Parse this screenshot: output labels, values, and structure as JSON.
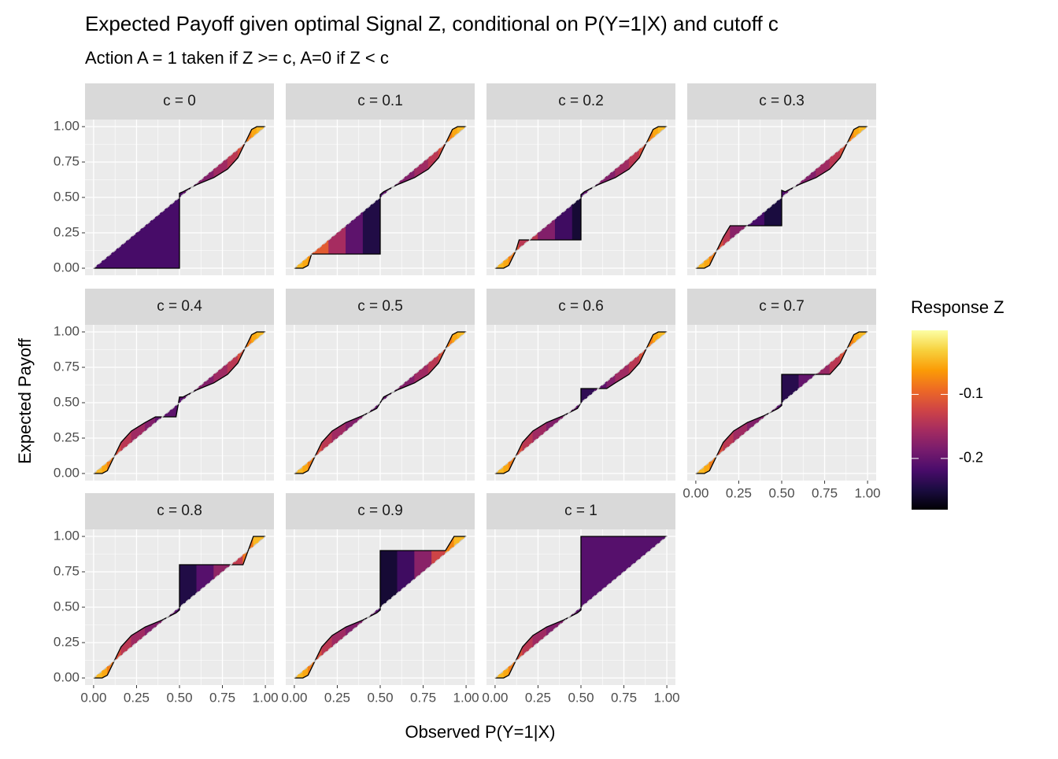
{
  "chart_data": {
    "type": "area",
    "title": "Expected Payoff given optimal Signal Z, conditional on P(Y=1|X) and cutoff c",
    "subtitle": "Action A = 1 taken if Z >= c, A=0 if Z < c",
    "xlabel": "Observed P(Y=1|X)",
    "ylabel": "Expected Payoff",
    "xlim": [
      -0.05,
      1.05
    ],
    "ylim": [
      -0.05,
      1.05
    ],
    "xticks": [
      {
        "value": 0,
        "label": "0.00"
      },
      {
        "value": 0.25,
        "label": "0.25"
      },
      {
        "value": 0.5,
        "label": "0.50"
      },
      {
        "value": 0.75,
        "label": "0.75"
      },
      {
        "value": 1,
        "label": "1.00"
      }
    ],
    "yticks": [
      {
        "value": 0,
        "label": "0.00"
      },
      {
        "value": 0.25,
        "label": "0.25"
      },
      {
        "value": 0.5,
        "label": "0.50"
      },
      {
        "value": 0.75,
        "label": "0.75"
      },
      {
        "value": 1,
        "label": "1.00"
      }
    ],
    "grid": true,
    "colorbar": {
      "title": "Response Z",
      "zlim": [
        -0.28,
        0
      ],
      "ticks": [
        -0.1,
        -0.2
      ],
      "colors": [
        "#000004",
        "#1b0c41",
        "#4a0c6b",
        "#781c6d",
        "#a52c60",
        "#cf4446",
        "#ed6925",
        "#fb9b06",
        "#f7d13d",
        "#fcffa4"
      ]
    },
    "facets": [
      {
        "label": "c = 0",
        "x": [
          0,
          0.5,
          0.5,
          0.52,
          0.6,
          0.7,
          0.78,
          0.84,
          0.88,
          0.92,
          0.95,
          1
        ],
        "values": [
          0,
          0,
          0.53,
          0.54,
          0.59,
          0.64,
          0.7,
          0.78,
          0.88,
          0.98,
          1,
          1
        ],
        "z": [
          -0.22,
          -0.22,
          -0.22,
          -0.21,
          -0.19,
          -0.17,
          -0.15,
          -0.13,
          -0.1,
          -0.06,
          -0.05,
          -0.04
        ]
      },
      {
        "label": "c = 0.1",
        "x": [
          0,
          0.05,
          0.08,
          0.1,
          0.2,
          0.3,
          0.4,
          0.5,
          0.5,
          0.52,
          0.6,
          0.7,
          0.78,
          0.84,
          0.88,
          0.92,
          0.95,
          1
        ],
        "values": [
          0,
          0,
          0.02,
          0.1,
          0.1,
          0.1,
          0.1,
          0.1,
          0.52,
          0.54,
          0.59,
          0.64,
          0.7,
          0.78,
          0.88,
          0.98,
          1,
          1
        ],
        "z": [
          -0.04,
          -0.05,
          -0.06,
          -0.08,
          -0.13,
          -0.18,
          -0.23,
          -0.26,
          -0.22,
          -0.21,
          -0.19,
          -0.17,
          -0.15,
          -0.13,
          -0.1,
          -0.06,
          -0.05,
          -0.04
        ]
      },
      {
        "label": "c = 0.2",
        "x": [
          0,
          0.05,
          0.08,
          0.12,
          0.14,
          0.25,
          0.35,
          0.45,
          0.5,
          0.5,
          0.52,
          0.6,
          0.7,
          0.78,
          0.84,
          0.88,
          0.92,
          0.95,
          1
        ],
        "values": [
          0,
          0,
          0.02,
          0.12,
          0.2,
          0.2,
          0.2,
          0.2,
          0.2,
          0.52,
          0.54,
          0.59,
          0.64,
          0.7,
          0.78,
          0.88,
          0.98,
          1,
          1
        ],
        "z": [
          -0.04,
          -0.05,
          -0.06,
          -0.1,
          -0.12,
          -0.16,
          -0.2,
          -0.25,
          -0.26,
          -0.22,
          -0.21,
          -0.19,
          -0.17,
          -0.15,
          -0.13,
          -0.1,
          -0.06,
          -0.05,
          -0.04
        ]
      },
      {
        "label": "c = 0.3",
        "x": [
          0,
          0.05,
          0.08,
          0.12,
          0.16,
          0.2,
          0.3,
          0.4,
          0.5,
          0.5,
          0.52,
          0.6,
          0.7,
          0.78,
          0.84,
          0.88,
          0.92,
          0.95,
          1
        ],
        "values": [
          0,
          0,
          0.02,
          0.12,
          0.22,
          0.3,
          0.3,
          0.3,
          0.3,
          0.55,
          0.54,
          0.59,
          0.64,
          0.7,
          0.78,
          0.88,
          0.98,
          1,
          1
        ],
        "z": [
          -0.04,
          -0.05,
          -0.06,
          -0.1,
          -0.13,
          -0.15,
          -0.2,
          -0.24,
          -0.26,
          -0.22,
          -0.21,
          -0.19,
          -0.17,
          -0.15,
          -0.13,
          -0.1,
          -0.06,
          -0.05,
          -0.04
        ]
      },
      {
        "label": "c = 0.4",
        "x": [
          0,
          0.05,
          0.08,
          0.12,
          0.16,
          0.22,
          0.3,
          0.36,
          0.48,
          0.5,
          0.52,
          0.6,
          0.7,
          0.78,
          0.84,
          0.88,
          0.92,
          0.95,
          1
        ],
        "values": [
          0,
          0,
          0.02,
          0.12,
          0.22,
          0.3,
          0.36,
          0.4,
          0.4,
          0.54,
          0.54,
          0.59,
          0.64,
          0.7,
          0.78,
          0.88,
          0.98,
          1,
          1
        ],
        "z": [
          -0.04,
          -0.05,
          -0.06,
          -0.1,
          -0.13,
          -0.15,
          -0.17,
          -0.19,
          -0.22,
          -0.21,
          -0.21,
          -0.19,
          -0.17,
          -0.15,
          -0.13,
          -0.1,
          -0.06,
          -0.05,
          -0.04
        ]
      },
      {
        "label": "c = 0.5",
        "x": [
          0,
          0.05,
          0.08,
          0.12,
          0.16,
          0.22,
          0.3,
          0.4,
          0.48,
          0.52,
          0.6,
          0.7,
          0.78,
          0.84,
          0.88,
          0.92,
          0.95,
          1
        ],
        "values": [
          0,
          0,
          0.02,
          0.12,
          0.22,
          0.3,
          0.36,
          0.41,
          0.46,
          0.54,
          0.59,
          0.64,
          0.7,
          0.78,
          0.88,
          0.98,
          1,
          1
        ],
        "z": [
          -0.04,
          -0.05,
          -0.06,
          -0.1,
          -0.13,
          -0.15,
          -0.17,
          -0.19,
          -0.21,
          -0.21,
          -0.19,
          -0.17,
          -0.15,
          -0.13,
          -0.1,
          -0.06,
          -0.05,
          -0.04
        ]
      },
      {
        "label": "c = 0.6",
        "x": [
          0,
          0.05,
          0.08,
          0.12,
          0.16,
          0.22,
          0.3,
          0.4,
          0.48,
          0.5,
          0.5,
          0.58,
          0.65,
          0.7,
          0.78,
          0.84,
          0.88,
          0.92,
          0.95,
          1
        ],
        "values": [
          0,
          0,
          0.02,
          0.12,
          0.22,
          0.3,
          0.36,
          0.41,
          0.46,
          0.5,
          0.6,
          0.6,
          0.6,
          0.64,
          0.7,
          0.78,
          0.88,
          0.98,
          1,
          1
        ],
        "z": [
          -0.04,
          -0.05,
          -0.06,
          -0.1,
          -0.13,
          -0.15,
          -0.17,
          -0.19,
          -0.21,
          -0.22,
          -0.25,
          -0.22,
          -0.19,
          -0.17,
          -0.15,
          -0.13,
          -0.1,
          -0.06,
          -0.05,
          -0.04
        ]
      },
      {
        "label": "c = 0.7",
        "x": [
          0,
          0.05,
          0.08,
          0.12,
          0.16,
          0.22,
          0.3,
          0.4,
          0.48,
          0.5,
          0.5,
          0.6,
          0.7,
          0.78,
          0.84,
          0.88,
          0.92,
          0.95,
          1
        ],
        "values": [
          0,
          0,
          0.02,
          0.12,
          0.22,
          0.3,
          0.36,
          0.41,
          0.46,
          0.48,
          0.7,
          0.7,
          0.7,
          0.7,
          0.78,
          0.88,
          0.98,
          1,
          1
        ],
        "z": [
          -0.04,
          -0.05,
          -0.06,
          -0.1,
          -0.13,
          -0.15,
          -0.17,
          -0.19,
          -0.21,
          -0.22,
          -0.26,
          -0.22,
          -0.18,
          -0.15,
          -0.13,
          -0.1,
          -0.06,
          -0.05,
          -0.04
        ]
      },
      {
        "label": "c = 0.8",
        "x": [
          0,
          0.05,
          0.08,
          0.12,
          0.16,
          0.22,
          0.3,
          0.4,
          0.48,
          0.5,
          0.5,
          0.6,
          0.7,
          0.8,
          0.87,
          0.93,
          1
        ],
        "values": [
          0,
          0,
          0.02,
          0.12,
          0.22,
          0.3,
          0.36,
          0.41,
          0.46,
          0.48,
          0.8,
          0.8,
          0.8,
          0.8,
          0.8,
          1,
          1
        ],
        "z": [
          -0.04,
          -0.05,
          -0.06,
          -0.1,
          -0.13,
          -0.15,
          -0.17,
          -0.19,
          -0.21,
          -0.22,
          -0.26,
          -0.23,
          -0.19,
          -0.15,
          -0.12,
          -0.05,
          -0.04
        ]
      },
      {
        "label": "c = 0.9",
        "x": [
          0,
          0.05,
          0.08,
          0.12,
          0.16,
          0.22,
          0.3,
          0.4,
          0.48,
          0.5,
          0.5,
          0.6,
          0.7,
          0.8,
          0.88,
          0.93,
          1
        ],
        "values": [
          0,
          0,
          0.02,
          0.12,
          0.22,
          0.3,
          0.36,
          0.41,
          0.46,
          0.48,
          0.9,
          0.9,
          0.9,
          0.9,
          0.9,
          1,
          1
        ],
        "z": [
          -0.04,
          -0.05,
          -0.06,
          -0.1,
          -0.13,
          -0.15,
          -0.17,
          -0.19,
          -0.21,
          -0.22,
          -0.26,
          -0.25,
          -0.2,
          -0.15,
          -0.1,
          -0.05,
          -0.04
        ]
      },
      {
        "label": "c = 1",
        "x": [
          0,
          0.05,
          0.08,
          0.12,
          0.16,
          0.22,
          0.3,
          0.4,
          0.48,
          0.5,
          0.5,
          1
        ],
        "values": [
          0,
          0,
          0.02,
          0.12,
          0.22,
          0.3,
          0.36,
          0.41,
          0.46,
          0.48,
          1,
          1
        ],
        "z": [
          -0.04,
          -0.05,
          -0.06,
          -0.1,
          -0.13,
          -0.15,
          -0.17,
          -0.19,
          -0.21,
          -0.21,
          -0.21,
          -0.21
        ]
      }
    ]
  }
}
